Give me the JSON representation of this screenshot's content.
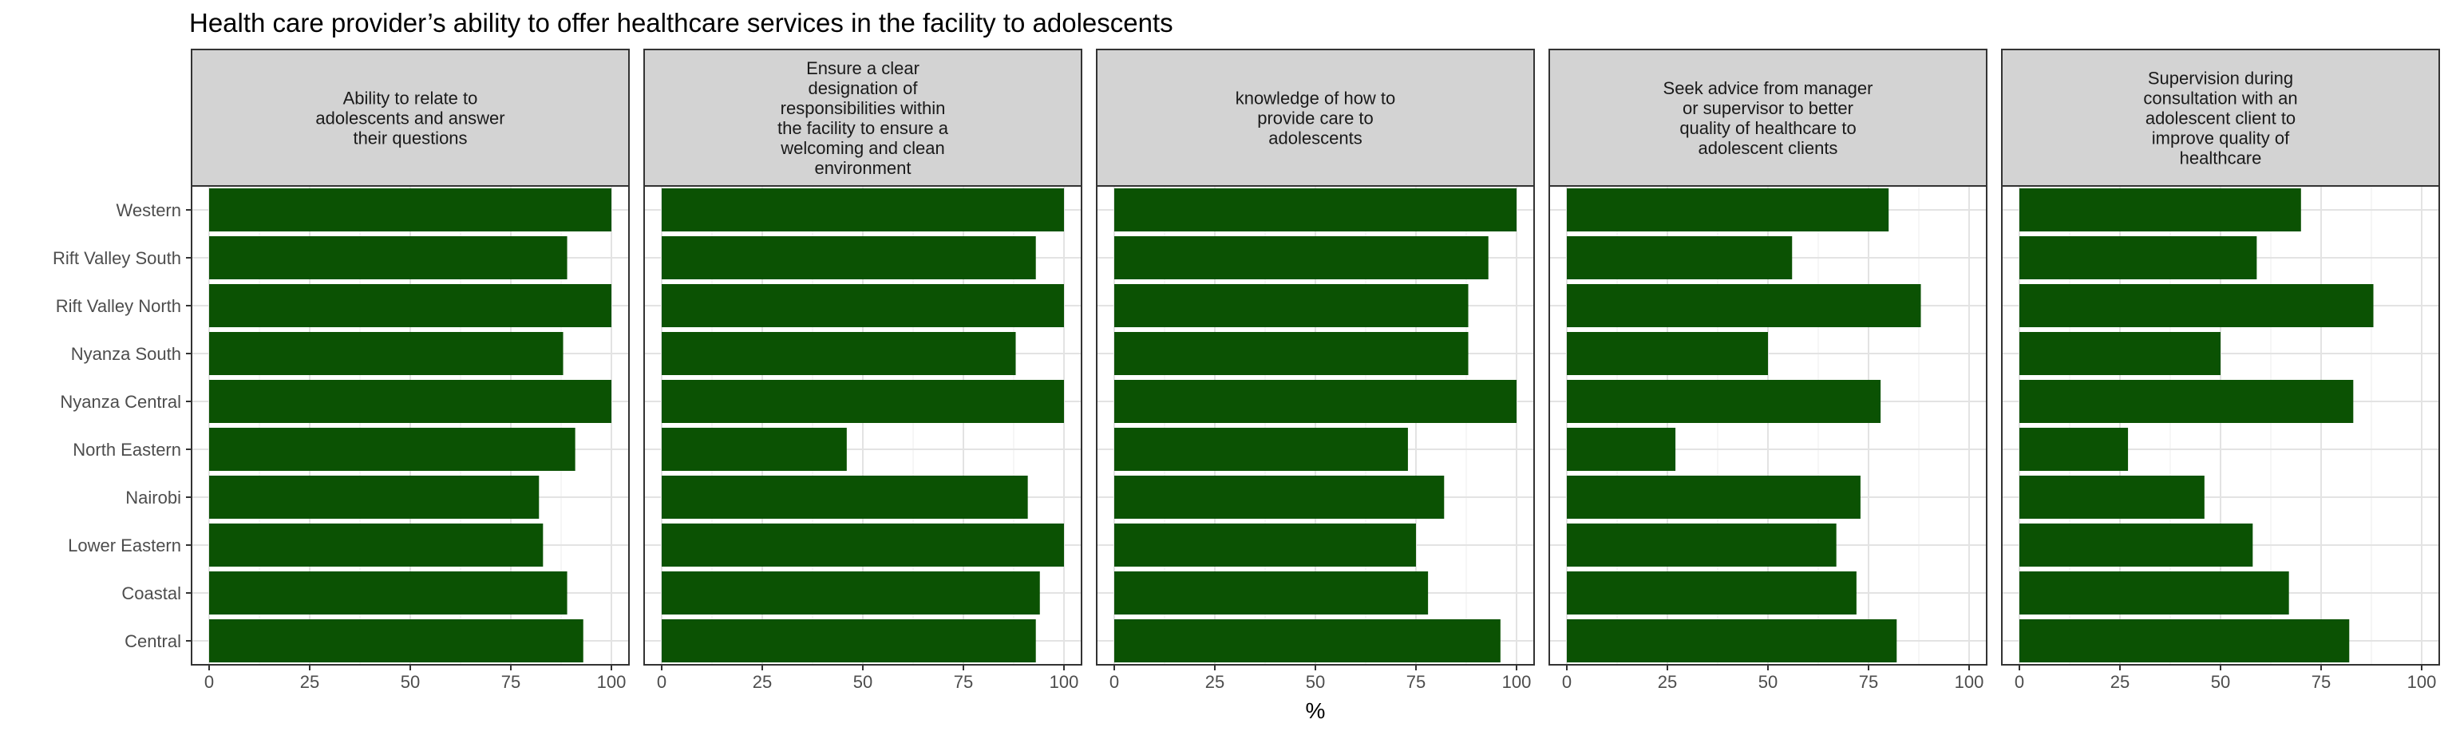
{
  "chart_data": {
    "type": "bar",
    "orientation": "horizontal",
    "title": "Health care provider’s ability to offer healthcare services in the facility to adolescents",
    "xlabel": "%",
    "ylabel": "",
    "xlim": [
      0,
      100
    ],
    "xticks": [
      "0",
      "25",
      "50",
      "75",
      "100"
    ],
    "grid": true,
    "bar_color": "#0b5203",
    "categories": [
      "Western",
      "Rift Valley South",
      "Rift Valley North",
      "Nyanza South",
      "Nyanza Central",
      "North Eastern",
      "Nairobi",
      "Lower Eastern",
      "Coastal",
      "Central"
    ],
    "panels": [
      {
        "title_lines": [
          "Ability to relate to",
          "adolescents and answer",
          "their questions"
        ],
        "values": [
          100,
          89,
          100,
          88,
          100,
          91,
          82,
          83,
          89,
          93
        ]
      },
      {
        "title_lines": [
          "Ensure a clear",
          "designation of",
          "responsibilities within",
          "the facility to ensure a",
          "welcoming and clean",
          "environment"
        ],
        "values": [
          100,
          93,
          100,
          88,
          100,
          46,
          91,
          100,
          94,
          93
        ]
      },
      {
        "title_lines": [
          "knowledge of how to",
          "provide care to",
          "adolescents"
        ],
        "values": [
          100,
          93,
          88,
          88,
          100,
          73,
          82,
          75,
          78,
          96
        ]
      },
      {
        "title_lines": [
          "Seek advice from manager",
          "or supervisor to better",
          "quality of healthcare to",
          "adolescent clients"
        ],
        "values": [
          80,
          56,
          88,
          50,
          78,
          27,
          73,
          67,
          72,
          82
        ]
      },
      {
        "title_lines": [
          "Supervision during",
          "consultation with an",
          "adolescent client to",
          "improve quality of",
          "healthcare"
        ],
        "values": [
          70,
          59,
          88,
          50,
          83,
          27,
          46,
          58,
          67,
          82
        ]
      }
    ]
  }
}
